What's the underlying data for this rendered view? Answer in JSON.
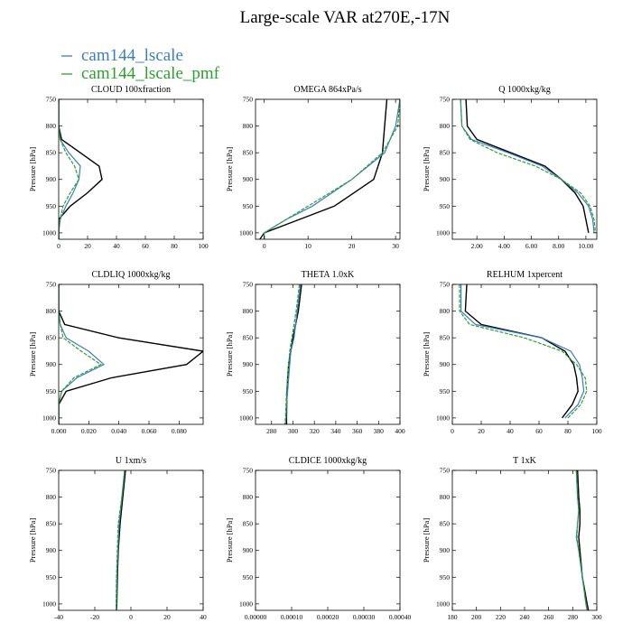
{
  "title": "Large-scale VAR at270E,-17N",
  "legend": [
    {
      "label": "cam144_lscale",
      "color": "#3a7fc1"
    },
    {
      "label": "cam144_lscale_pmf",
      "color": "#2ca02c"
    }
  ],
  "colors": {
    "ref": "#000000",
    "lscale": "#3a7fc1",
    "pmf": "#2ca02c"
  },
  "chart_data": [
    {
      "type": "line",
      "title": "CLOUD 100xfraction",
      "ylabel": "Pressure [hPa]",
      "xlim": [
        0,
        100
      ],
      "ylim": [
        750,
        1012
      ],
      "xticks": [
        0,
        20,
        40,
        60,
        80,
        100
      ],
      "xtick_labels": [
        "0",
        "20",
        "40",
        "60",
        "80",
        "100"
      ],
      "yticks": [
        750,
        800,
        850,
        900,
        950,
        1000
      ],
      "ytick_labels": [
        "750",
        "800",
        "850",
        "900",
        "950",
        "1000"
      ],
      "y": [
        750,
        800,
        825,
        850,
        875,
        900,
        925,
        950,
        975,
        1000,
        1012
      ],
      "series": [
        {
          "key": "ref",
          "values": [
            0,
            0,
            2,
            15,
            28,
            30,
            20,
            8,
            0,
            0,
            0
          ]
        },
        {
          "key": "lscale",
          "values": [
            0,
            0,
            1,
            7,
            15,
            14,
            10,
            5,
            1,
            0,
            0
          ]
        },
        {
          "key": "pmf",
          "values": [
            0,
            0,
            1,
            5,
            11,
            14,
            8,
            3,
            1,
            0,
            0
          ]
        }
      ]
    },
    {
      "type": "line",
      "title": "OMEGA 864xPa/s",
      "ylabel": "Pressure [hPa]",
      "xlim": [
        -2,
        31
      ],
      "ylim": [
        750,
        1012
      ],
      "xticks": [
        0,
        10,
        20,
        30
      ],
      "xtick_labels": [
        "0",
        "10",
        "20",
        "30"
      ],
      "yticks": [
        750,
        800,
        850,
        900,
        950,
        1000
      ],
      "ytick_labels": [
        "750",
        "800",
        "850",
        "900",
        "950",
        "1000"
      ],
      "y": [
        750,
        800,
        850,
        900,
        950,
        975,
        1000,
        1012
      ],
      "series": [
        {
          "key": "ref",
          "values": [
            28,
            27.5,
            27,
            25,
            16,
            8,
            0,
            -1
          ]
        },
        {
          "key": "lscale",
          "values": [
            31,
            30,
            27.5,
            20,
            11,
            5,
            0,
            0
          ]
        },
        {
          "key": "pmf",
          "values": [
            31,
            30.5,
            27,
            20,
            10,
            5,
            0,
            0
          ]
        }
      ]
    },
    {
      "type": "line",
      "title": "Q 1000xkg/kg",
      "ylabel": "Pressure [hPa]",
      "xlim": [
        0.2,
        10.8
      ],
      "ylim": [
        750,
        1012
      ],
      "xticks": [
        2,
        4,
        6,
        8,
        10
      ],
      "xtick_labels": [
        "2.00",
        "4.00",
        "6.00",
        "8.00",
        "10.00"
      ],
      "yticks": [
        750,
        800,
        850,
        900,
        950,
        1000
      ],
      "ytick_labels": [
        "750",
        "800",
        "850",
        "900",
        "950",
        "1000"
      ],
      "y": [
        750,
        800,
        825,
        850,
        875,
        900,
        925,
        950,
        975,
        1000
      ],
      "series": [
        {
          "key": "ref",
          "values": [
            1.2,
            1.3,
            2.0,
            4.5,
            7.0,
            8.2,
            9.2,
            9.8,
            10.0,
            10.2
          ]
        },
        {
          "key": "lscale",
          "values": [
            0.8,
            0.9,
            1.6,
            4.3,
            6.8,
            8.2,
            9.4,
            10.2,
            10.5,
            10.6
          ]
        },
        {
          "key": "pmf",
          "values": [
            0.8,
            0.9,
            1.5,
            3.5,
            6.3,
            8.2,
            9.6,
            10.3,
            10.6,
            10.7
          ]
        }
      ]
    },
    {
      "type": "line",
      "title": "CLDLIQ 1000xkg/kg",
      "ylabel": "Pressure [hPa]",
      "xlim": [
        0,
        0.096
      ],
      "ylim": [
        750,
        1012
      ],
      "xticks": [
        0,
        0.02,
        0.04,
        0.06,
        0.08
      ],
      "xtick_labels": [
        "0.000",
        "0.020",
        "0.040",
        "0.060",
        "0.080"
      ],
      "yticks": [
        750,
        800,
        850,
        900,
        950,
        1000
      ],
      "ytick_labels": [
        "750",
        "800",
        "850",
        "900",
        "950",
        "1000"
      ],
      "y": [
        750,
        800,
        825,
        850,
        875,
        900,
        925,
        950,
        975,
        1000,
        1012
      ],
      "series": [
        {
          "key": "ref",
          "values": [
            0,
            0,
            0.004,
            0.04,
            0.096,
            0.085,
            0.035,
            0.005,
            0,
            0,
            0
          ]
        },
        {
          "key": "lscale",
          "values": [
            0,
            0,
            0.001,
            0.005,
            0.02,
            0.03,
            0.012,
            0.002,
            0,
            0,
            0
          ]
        },
        {
          "key": "pmf",
          "values": [
            0,
            0,
            0.001,
            0.003,
            0.015,
            0.028,
            0.01,
            0.002,
            0,
            0,
            0
          ]
        }
      ]
    },
    {
      "type": "line",
      "title": "THETA 1.0xK",
      "ylabel": "Pressure [hPa]",
      "xlim": [
        265,
        400
      ],
      "ylim": [
        750,
        1012
      ],
      "xticks": [
        280,
        300,
        320,
        340,
        360,
        380,
        400
      ],
      "xtick_labels": [
        "280",
        "300",
        "320",
        "340",
        "360",
        "380",
        "400"
      ],
      "yticks": [
        750,
        800,
        850,
        900,
        950,
        1000
      ],
      "ytick_labels": [
        "750",
        "800",
        "850",
        "900",
        "950",
        "1000"
      ],
      "y": [
        750,
        800,
        850,
        875,
        900,
        925,
        950,
        975,
        1000,
        1012
      ],
      "series": [
        {
          "key": "ref",
          "values": [
            308,
            305,
            300,
            298,
            296,
            295,
            294.5,
            294.2,
            294,
            294
          ]
        },
        {
          "key": "lscale",
          "values": [
            307,
            304,
            301,
            298,
            297,
            296,
            295,
            294,
            293.5,
            293
          ]
        },
        {
          "key": "pmf",
          "values": [
            306,
            303,
            299,
            297,
            296,
            295,
            294,
            293.5,
            293,
            292.5
          ]
        }
      ]
    },
    {
      "type": "line",
      "title": "RELHUM 1xpercent",
      "ylabel": "Pressure [hPa]",
      "xlim": [
        0,
        100
      ],
      "ylim": [
        750,
        1012
      ],
      "xticks": [
        0,
        20,
        40,
        60,
        80,
        100
      ],
      "xtick_labels": [
        "0",
        "20",
        "40",
        "60",
        "80",
        "100"
      ],
      "yticks": [
        750,
        800,
        850,
        900,
        950,
        1000
      ],
      "ytick_labels": [
        "750",
        "800",
        "850",
        "900",
        "950",
        "1000"
      ],
      "y": [
        750,
        800,
        825,
        850,
        875,
        900,
        925,
        950,
        975,
        1000
      ],
      "series": [
        {
          "key": "ref",
          "values": [
            10,
            9,
            20,
            62,
            78,
            84,
            86,
            87,
            83,
            76
          ]
        },
        {
          "key": "lscale",
          "values": [
            6,
            6,
            16,
            62,
            82,
            88,
            90,
            91,
            87,
            78
          ]
        },
        {
          "key": "pmf",
          "values": [
            5,
            5,
            12,
            50,
            76,
            86,
            92,
            93,
            89,
            80
          ]
        }
      ]
    },
    {
      "type": "line",
      "title": "U 1xm/s",
      "ylabel": "Pressure [hPa]",
      "xlim": [
        -40,
        40
      ],
      "ylim": [
        750,
        1012
      ],
      "xticks": [
        -40,
        -20,
        0,
        20,
        40
      ],
      "xtick_labels": [
        "-40",
        "-20",
        "0",
        "20",
        "40"
      ],
      "yticks": [
        750,
        800,
        850,
        900,
        950,
        1000
      ],
      "ytick_labels": [
        "750",
        "800",
        "850",
        "900",
        "950",
        "1000"
      ],
      "y": [
        750,
        800,
        850,
        900,
        950,
        1000,
        1012
      ],
      "series": [
        {
          "key": "ref",
          "values": [
            -3,
            -4.5,
            -6,
            -7,
            -7.5,
            -7.8,
            -8
          ]
        },
        {
          "key": "lscale",
          "values": [
            -3.5,
            -5,
            -6.5,
            -7.2,
            -7.8,
            -8,
            -8.2
          ]
        },
        {
          "key": "pmf",
          "values": [
            -3.5,
            -5,
            -7,
            -7.5,
            -8,
            -8.2,
            -8.2
          ]
        }
      ]
    },
    {
      "type": "line",
      "title": "CLDICE 1000xkg/kg",
      "ylabel": "Pressure [hPa]",
      "xlim": [
        0,
        0.0004
      ],
      "ylim": [
        750,
        1012
      ],
      "xticks": [
        0,
        0.0001,
        0.0002,
        0.0003,
        0.0004
      ],
      "xtick_labels": [
        "0.00000",
        "0.00010",
        "0.00020",
        "0.00030",
        "0.00040"
      ],
      "yticks": [
        750,
        800,
        850,
        900,
        950,
        1000
      ],
      "ytick_labels": [
        "750",
        "800",
        "850",
        "900",
        "950",
        "1000"
      ],
      "y": [],
      "series": []
    },
    {
      "type": "line",
      "title": "T 1xK",
      "ylabel": "Pressure [hPa]",
      "xlim": [
        180,
        300
      ],
      "ylim": [
        750,
        1012
      ],
      "xticks": [
        180,
        200,
        220,
        240,
        260,
        280,
        300
      ],
      "xtick_labels": [
        "180",
        "200",
        "220",
        "240",
        "260",
        "280",
        "300"
      ],
      "yticks": [
        750,
        800,
        850,
        900,
        950,
        1000
      ],
      "ytick_labels": [
        "750",
        "800",
        "850",
        "900",
        "950",
        "1000"
      ],
      "y": [
        750,
        800,
        825,
        850,
        875,
        900,
        950,
        1000,
        1012
      ],
      "series": [
        {
          "key": "ref",
          "values": [
            284,
            285,
            286,
            286,
            285,
            286,
            288,
            292,
            293
          ]
        },
        {
          "key": "lscale",
          "values": [
            283,
            284,
            285,
            284,
            283,
            285,
            288,
            291,
            292
          ]
        },
        {
          "key": "pmf",
          "values": [
            283,
            284,
            285,
            284,
            283.5,
            285,
            288,
            291,
            292
          ]
        }
      ]
    }
  ]
}
